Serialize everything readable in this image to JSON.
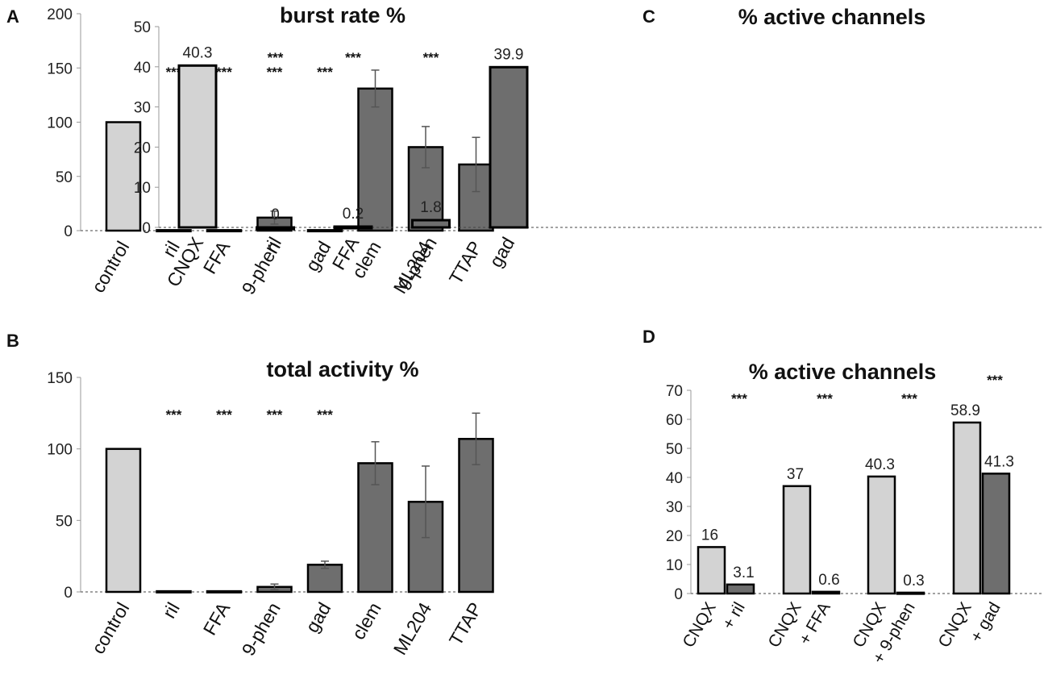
{
  "colors": {
    "light_bar": "#d3d3d3",
    "dark_bar": "#6e6e6e",
    "bar_edge": "#000000",
    "axis": "#999999",
    "baseline_dash": "#444444"
  },
  "chart_data": [
    {
      "panel": "A",
      "type": "bar",
      "title": "burst rate %",
      "categories": [
        "control",
        "ril",
        "FFA",
        "9-phen",
        "gad",
        "clem",
        "ML204",
        "TTAP"
      ],
      "values": [
        100,
        0.5,
        0.5,
        12,
        0.5,
        131,
        77,
        61
      ],
      "errors": [
        0,
        0,
        0,
        6,
        0,
        17,
        19,
        25
      ],
      "colors": [
        "light",
        "dark",
        "dark",
        "dark",
        "dark",
        "dark",
        "dark",
        "dark"
      ],
      "significance": [
        "",
        "***",
        "***",
        "***",
        "***",
        "",
        "",
        ""
      ],
      "ylim": [
        0,
        200
      ],
      "yticks": [
        "0",
        "50",
        "100",
        "150",
        "200"
      ]
    },
    {
      "panel": "B",
      "type": "bar",
      "title": "total activity %",
      "categories": [
        "control",
        "ril",
        "FFA",
        "9-phen",
        "gad",
        "clem",
        "ML204",
        "TTAP"
      ],
      "values": [
        100,
        0.5,
        0.5,
        3.5,
        19,
        90,
        63,
        107
      ],
      "errors": [
        0,
        0,
        0,
        2,
        2.5,
        15,
        25,
        18
      ],
      "colors": [
        "light",
        "dark",
        "dark",
        "dark",
        "dark",
        "dark",
        "dark",
        "dark"
      ],
      "significance": [
        "",
        "***",
        "***",
        "***",
        "***",
        "",
        "",
        ""
      ],
      "ylim": [
        0,
        150
      ],
      "yticks": [
        "0",
        "50",
        "100",
        "150"
      ]
    },
    {
      "panel": "C",
      "type": "bar",
      "title": "% active channels",
      "categories": [
        "CNQX",
        "ril",
        "FFA",
        "9-phen",
        "gad"
      ],
      "values": [
        40.3,
        0,
        0.2,
        1.8,
        39.9
      ],
      "labels": [
        "40.3",
        "0",
        "0.2",
        "1.8",
        "39.9"
      ],
      "colors": [
        "light",
        "dark",
        "dark",
        "dark",
        "dark"
      ],
      "significance": [
        "",
        "***",
        "***",
        "***",
        ""
      ],
      "ylim": [
        0,
        50
      ],
      "yticks": [
        "0",
        "10",
        "20",
        "30",
        "40",
        "50"
      ]
    },
    {
      "panel": "D",
      "type": "bar",
      "title": "% active channels",
      "groups": [
        {
          "labels": [
            "CNQX",
            "+ ril"
          ],
          "values": [
            16,
            3.1
          ],
          "value_labels": [
            "16",
            "3.1"
          ],
          "significance": "***"
        },
        {
          "labels": [
            "CNQX",
            "+ FFA"
          ],
          "values": [
            37,
            0.6
          ],
          "value_labels": [
            "37",
            "0.6"
          ],
          "significance": "***"
        },
        {
          "labels": [
            "CNQX",
            "+ 9-phen"
          ],
          "values": [
            40.3,
            0.3
          ],
          "value_labels": [
            "40.3",
            "0.3"
          ],
          "significance": "***"
        },
        {
          "labels": [
            "CNQX",
            "+ gad"
          ],
          "values": [
            58.9,
            41.3
          ],
          "value_labels": [
            "58.9",
            "41.3"
          ],
          "significance": "***"
        }
      ],
      "ylim": [
        0,
        70
      ],
      "yticks": [
        "0",
        "10",
        "20",
        "30",
        "40",
        "50",
        "60",
        "70"
      ]
    }
  ]
}
